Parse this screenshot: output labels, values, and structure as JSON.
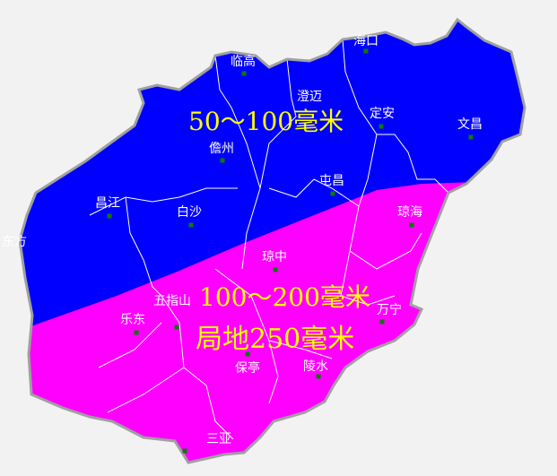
{
  "colors": {
    "zone_50_100": "#0000ff",
    "zone_100_200": "#ff00ff",
    "label": "#ffff00",
    "city_label": "#ffffff",
    "city_dot": "#0a7a0a",
    "coast": "#a0a0a0",
    "background": "#f2f2f2"
  },
  "zones": {
    "north": "50～100毫米",
    "south": "100～200毫米",
    "south_local": "局地250毫米"
  },
  "cities": [
    {
      "name": "海口"
    },
    {
      "name": "临高"
    },
    {
      "name": "澄迈"
    },
    {
      "name": "定安"
    },
    {
      "name": "文昌"
    },
    {
      "name": "儋州"
    },
    {
      "name": "屯昌"
    },
    {
      "name": "昌江"
    },
    {
      "name": "白沙"
    },
    {
      "name": "琼海"
    },
    {
      "name": "东方"
    },
    {
      "name": "琼中"
    },
    {
      "name": "乐东"
    },
    {
      "name": "五指山"
    },
    {
      "name": "万宁"
    },
    {
      "name": "保亭"
    },
    {
      "name": "陵水"
    },
    {
      "name": "三亚"
    }
  ]
}
